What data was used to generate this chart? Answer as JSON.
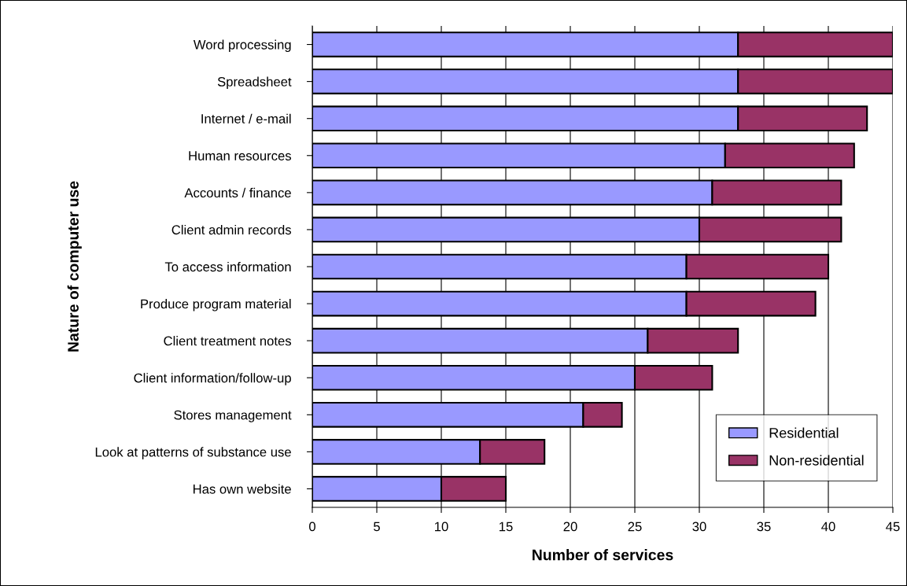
{
  "chart_data": {
    "type": "bar",
    "orientation": "horizontal",
    "stacked": true,
    "xlabel": "Number of services",
    "ylabel": "Nature of computer use",
    "categories": [
      "Word processing",
      "Spreadsheet",
      "Internet / e-mail",
      "Human resources",
      "Accounts / finance",
      "Client admin records",
      "To access information",
      "Produce program material",
      "Client treatment notes",
      "Client information/follow-up",
      "Stores management",
      "Look at patterns of substance use",
      "Has own website"
    ],
    "series": [
      {
        "name": "Residential",
        "color": "#9999ff",
        "values": [
          33,
          33,
          33,
          32,
          31,
          30,
          29,
          29,
          26,
          25,
          21,
          13,
          10
        ]
      },
      {
        "name": "Non-residential",
        "color": "#993366",
        "values": [
          12,
          12,
          10,
          10,
          10,
          11,
          11,
          10,
          7,
          6,
          3,
          5,
          5
        ]
      }
    ],
    "xlim": [
      0,
      45
    ],
    "xticks": [
      0,
      5,
      10,
      15,
      20,
      25,
      30,
      35,
      40,
      45
    ],
    "grid": "x",
    "legend": "bottom right"
  }
}
